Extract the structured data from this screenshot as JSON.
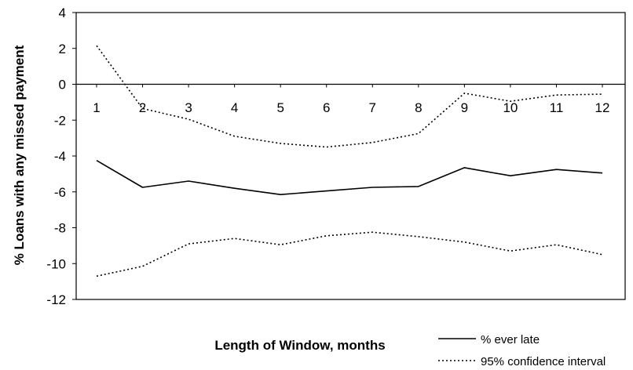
{
  "chart_data": {
    "type": "line",
    "title": "",
    "xlabel": "Length of Window, months",
    "ylabel": "% Loans with any missed payment",
    "x": [
      1,
      2,
      3,
      4,
      5,
      6,
      7,
      8,
      9,
      10,
      11,
      12
    ],
    "x_tick_labels": [
      "1",
      "2",
      "3",
      "4",
      "5",
      "6",
      "7",
      "8",
      "9",
      "10",
      "11",
      "12"
    ],
    "ylim": [
      -12,
      4
    ],
    "y_ticks": [
      4,
      2,
      0,
      -2,
      -4,
      -6,
      -8,
      -10,
      -12
    ],
    "y_tick_labels": [
      "4",
      "2",
      "0",
      "-2",
      "-4",
      "-6",
      "-8",
      "-10",
      "-12"
    ],
    "grid": false,
    "legend_position": "bottom-right",
    "series": [
      {
        "name": "% ever late",
        "style": "solid",
        "color": "#000000",
        "values": [
          -4.25,
          -5.75,
          -5.4,
          -5.8,
          -6.15,
          -5.95,
          -5.75,
          -5.7,
          -4.65,
          -5.1,
          -4.75,
          -4.95
        ]
      },
      {
        "name": "95% confidence interval",
        "style": "dotted",
        "color": "#000000",
        "values": [
          2.15,
          -1.35,
          -1.95,
          -2.9,
          -3.3,
          -3.5,
          -3.25,
          -2.75,
          -0.5,
          -0.95,
          -0.6,
          -0.55
        ]
      },
      {
        "name": "",
        "style": "dotted",
        "color": "#000000",
        "values": [
          -10.7,
          -10.15,
          -8.9,
          -8.6,
          -8.95,
          -8.45,
          -8.25,
          -8.5,
          -8.8,
          -9.3,
          -8.95,
          -9.5
        ]
      }
    ]
  }
}
